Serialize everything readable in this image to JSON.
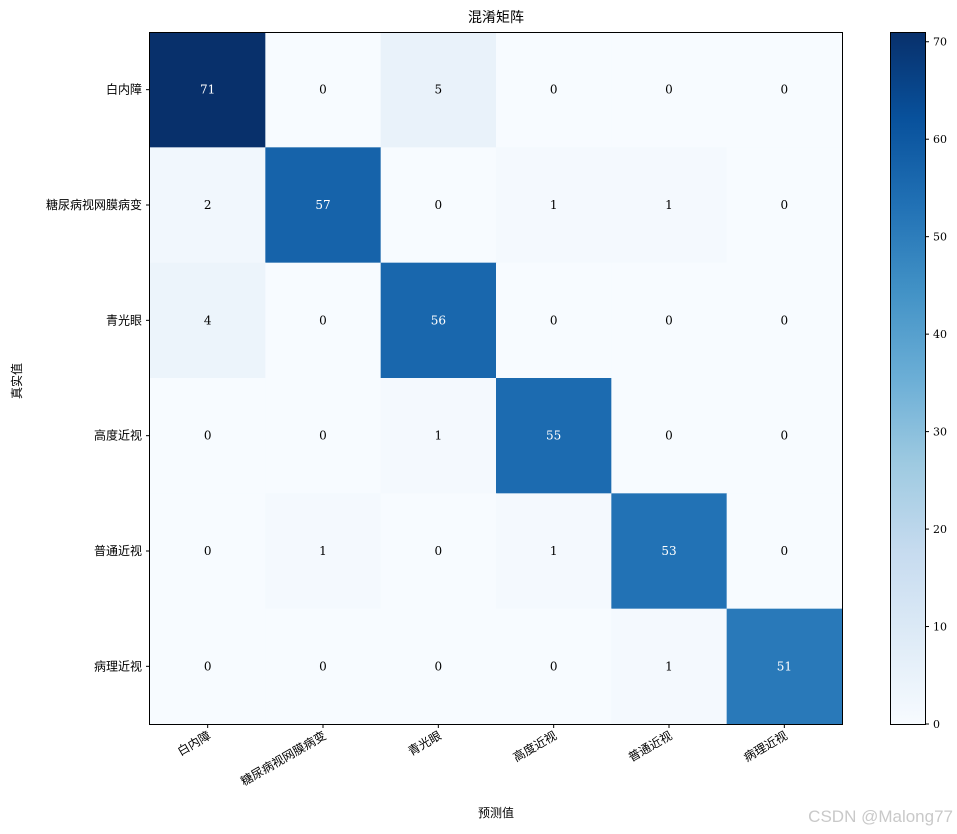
{
  "chart_data": {
    "type": "heatmap",
    "title": "混淆矩阵",
    "xlabel": "预测值",
    "ylabel": "真实值",
    "categories": [
      "白内障",
      "糖尿病视网膜病变",
      "青光眼",
      "高度近视",
      "普通近视",
      "病理近视"
    ],
    "values": [
      [
        71,
        0,
        5,
        0,
        0,
        0
      ],
      [
        2,
        57,
        0,
        1,
        1,
        0
      ],
      [
        4,
        0,
        56,
        0,
        0,
        0
      ],
      [
        0,
        0,
        1,
        55,
        0,
        0
      ],
      [
        0,
        1,
        0,
        1,
        53,
        0
      ],
      [
        0,
        0,
        0,
        0,
        1,
        51
      ]
    ],
    "colormap": "Blues",
    "vmin": 0,
    "vmax": 71,
    "colorbar_ticks": [
      0,
      10,
      20,
      30,
      40,
      50,
      60,
      70
    ],
    "colors": {
      "low": "#f7fbff",
      "high": "#08306b",
      "text_light": "#ffffff",
      "text_dark": "#000000"
    }
  },
  "watermark": "CSDN @Malong77"
}
